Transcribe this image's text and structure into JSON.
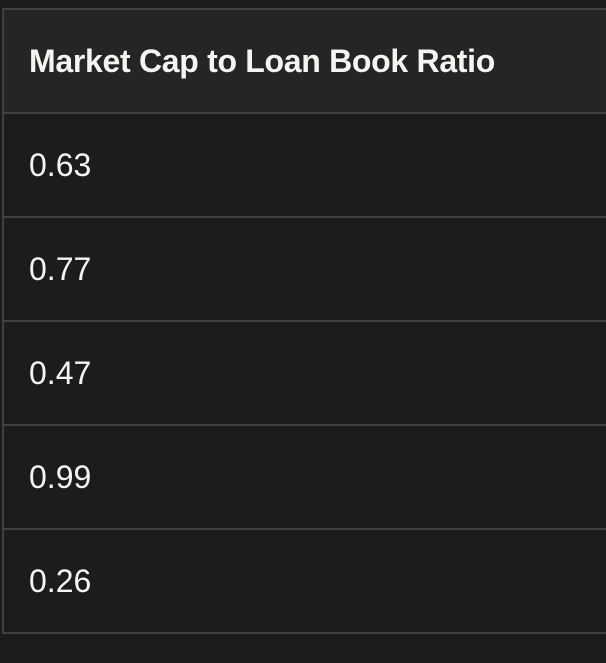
{
  "table": {
    "header": "Market Cap to Loan Book Ratio",
    "rows": [
      "0.63",
      "0.77",
      "0.47",
      "0.99",
      "0.26"
    ]
  }
}
